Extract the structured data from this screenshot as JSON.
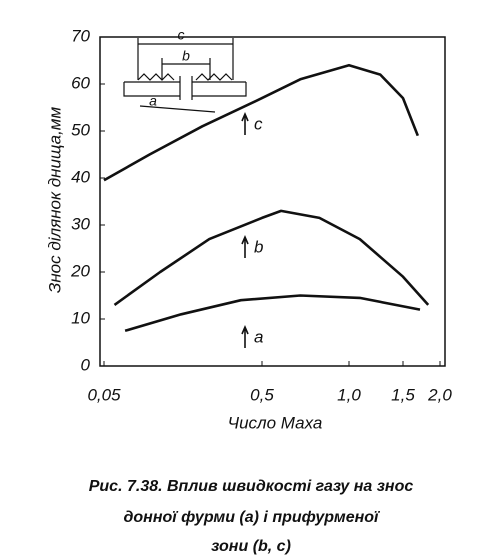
{
  "chart_data": {
    "type": "line",
    "y_label": "Знос ділянок днища,мм",
    "x_label": "Число Маха",
    "caption": [
      "Рис. 7.38. Вплив швидкості газу на знос",
      "донної фурми (а) і прифурменої",
      "зони (b, c)"
    ],
    "xlim": [
      0.05,
      2.0
    ],
    "xticks": [
      {
        "value": 0.05,
        "label": "0,05"
      },
      {
        "value": 0.5,
        "label": "0,5"
      },
      {
        "value": 1.0,
        "label": "1,0"
      },
      {
        "value": 1.5,
        "label": "1,5"
      },
      {
        "value": 2.0,
        "label": "2,0"
      }
    ],
    "ylim": [
      0,
      70
    ],
    "yticks": [
      0,
      10,
      20,
      30,
      40,
      50,
      60,
      70
    ],
    "series": [
      {
        "name": "c",
        "color": "#111111",
        "x": [
          0.05,
          0.18,
          0.33,
          0.5,
          0.72,
          1.0,
          1.29,
          1.5,
          1.7
        ],
        "values": [
          39.5,
          45,
          51,
          57,
          61,
          64,
          62,
          57,
          49
        ]
      },
      {
        "name": "b",
        "color": "#111111",
        "x": [
          0.08,
          0.21,
          0.35,
          0.5,
          0.61,
          0.83,
          1.1,
          1.5,
          1.84
        ],
        "values": [
          13,
          20,
          27,
          31.5,
          33,
          31.5,
          27,
          19,
          13
        ]
      },
      {
        "name": "a",
        "color": "#111111",
        "x": [
          0.11,
          0.27,
          0.44,
          0.72,
          1.1,
          1.73
        ],
        "values": [
          7.5,
          11,
          14,
          15,
          14.5,
          12
        ]
      }
    ],
    "inset_labels": [
      "c",
      "b",
      "a"
    ]
  }
}
